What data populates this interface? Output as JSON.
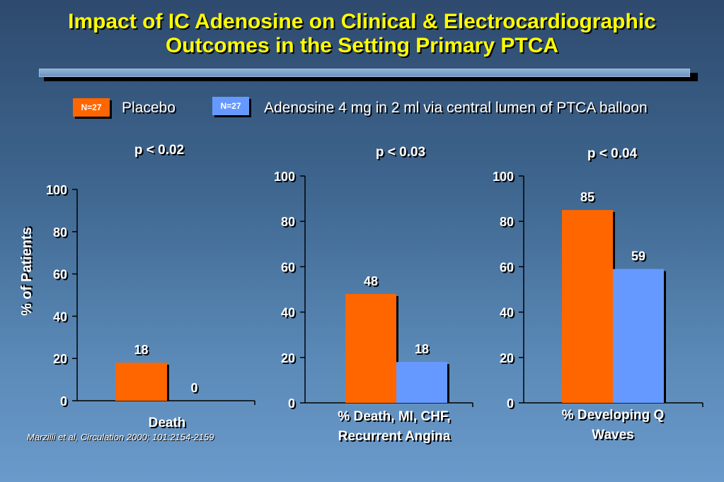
{
  "slide": {
    "title_line1": "Impact of IC Adenosine on Clinical & Electrocardiographic",
    "title_line2": "Outcomes in the Setting Primary PTCA",
    "citation": "Marzilli et al, Circulation 2000; 101:2154-2159"
  },
  "legend": [
    {
      "badge": "N=27",
      "label": "Placebo",
      "color": "#ff6600"
    },
    {
      "badge": "N=27",
      "label": "Adenosine 4 mg in 2 ml via central lumen of PTCA balloon",
      "color": "#6699ff"
    }
  ],
  "chart_data": [
    {
      "type": "bar",
      "ylabel": "% of Patients",
      "ylim": [
        0,
        100
      ],
      "yticks": [
        "0",
        "20",
        "40",
        "60",
        "80",
        "100"
      ],
      "pvalue": "p < 0.02",
      "category": "Death",
      "series": [
        {
          "name": "Placebo",
          "value": 18,
          "label": "18"
        },
        {
          "name": "Adenosine 4 mg in 2 ml via central lumen of PTCA balloon",
          "value": 0,
          "label": "0"
        }
      ]
    },
    {
      "type": "bar",
      "ylim": [
        0,
        100
      ],
      "yticks": [
        "0",
        "20",
        "40",
        "60",
        "80",
        "100"
      ],
      "pvalue": "p < 0.03",
      "category_line1": "% Death, MI, CHF,",
      "category_line2": "Recurrent Angina",
      "series": [
        {
          "name": "Placebo",
          "value": 48,
          "label": "48"
        },
        {
          "name": "Adenosine 4 mg in 2 ml via central lumen of PTCA balloon",
          "value": 18,
          "label": "18"
        }
      ]
    },
    {
      "type": "bar",
      "ylim": [
        0,
        100
      ],
      "yticks": [
        "0",
        "20",
        "40",
        "60",
        "80",
        "100"
      ],
      "pvalue": "p < 0.04",
      "category_line1": "% Developing Q",
      "category_line2": "Waves",
      "series": [
        {
          "name": "Placebo",
          "value": 85,
          "label": "85"
        },
        {
          "name": "Adenosine 4 mg in 2 ml via central lumen of PTCA balloon",
          "value": 59,
          "label": "59"
        }
      ]
    }
  ]
}
